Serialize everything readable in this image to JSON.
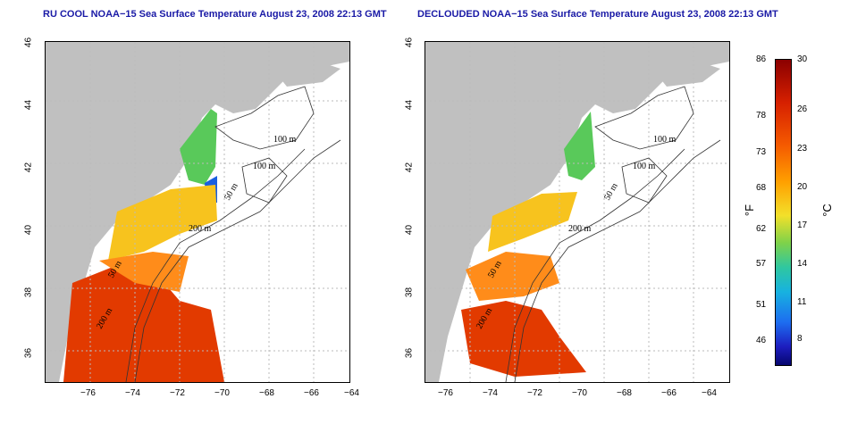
{
  "panels": [
    {
      "title": "RU COOL NOAA−15 Sea Surface Temperature August 23, 2008 22:13 GMT",
      "contour_labels": [
        "100 m",
        "100 m",
        "50 m",
        "200 m",
        "50 m",
        "200 m"
      ]
    },
    {
      "title": "DECLOUDED NOAA−15 Sea Surface Temperature August 23, 2008 22:13 GMT",
      "contour_labels": [
        "100 m",
        "100 m",
        "50 m",
        "200 m",
        "50 m",
        "200 m"
      ]
    }
  ],
  "x_ticks": [
    "−76",
    "−74",
    "−72",
    "−70",
    "−68",
    "−66",
    "−64"
  ],
  "y_ticks": [
    "46",
    "44",
    "42",
    "40",
    "38",
    "36"
  ],
  "colorbar": {
    "fahrenheit_ticks": [
      "86",
      "78",
      "73",
      "68",
      "62",
      "57",
      "51",
      "46"
    ],
    "celsius_ticks": [
      "30",
      "26",
      "23",
      "20",
      "17",
      "14",
      "11",
      "8"
    ],
    "fahrenheit_label": "°F",
    "celsius_label": "°C"
  },
  "colors": {
    "land": "#c0c0c0",
    "title": "#1a1aa6",
    "warm": "#e23a00",
    "mid": "#f7c31e",
    "cool": "#59c95a",
    "cold": "#1a5fe0"
  }
}
